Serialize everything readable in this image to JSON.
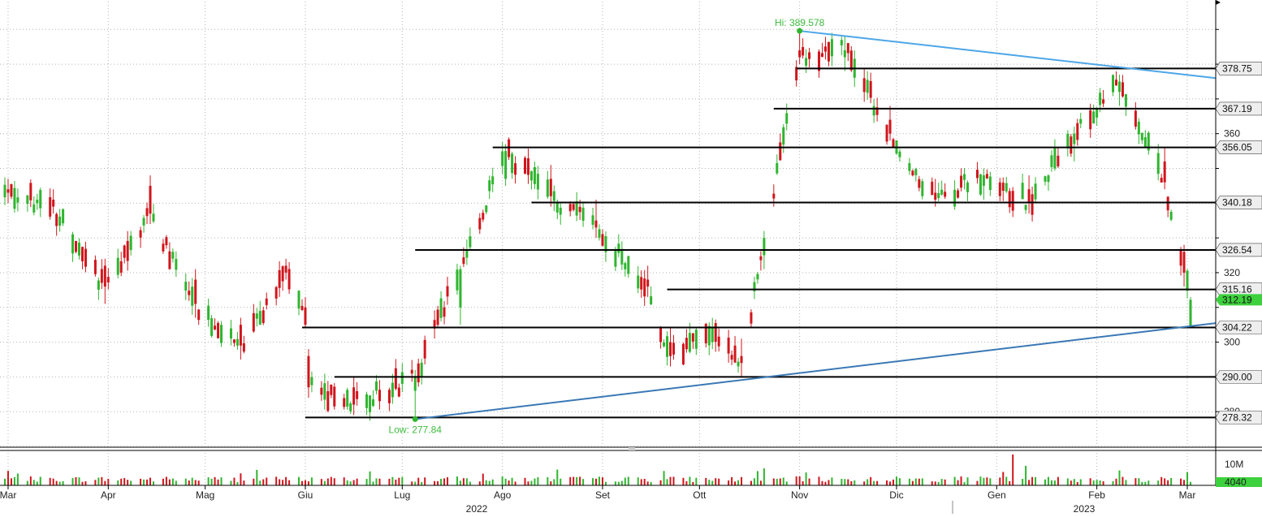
{
  "chart_data": {
    "type": "candlestick",
    "title": "",
    "date_range": [
      "2022-02-28",
      "2023-03-02"
    ],
    "x_tick_labels": [
      "Mar",
      "Apr",
      "Mag",
      "Giu",
      "Lug",
      "Ago",
      "Set",
      "Ott",
      "Nov",
      "Dic",
      "Gen",
      "Feb",
      "Mar"
    ],
    "year_labels": [
      "2022",
      "2023"
    ],
    "y_tick_labels": [
      "300",
      "320",
      "360",
      "280"
    ],
    "ylim": [
      270,
      398
    ],
    "price_levels": [
      "378.75",
      "367.19",
      "356.05",
      "340.18",
      "326.54",
      "315.16",
      "304.22",
      "290.00",
      "278.32"
    ],
    "last_price": "312.19",
    "annotations": {
      "high": "Hi: 389.578",
      "low": "Low: 277.84"
    },
    "volume_ticks": [
      "10M"
    ],
    "volume_last": "4040",
    "grid": true,
    "colors": {
      "up": "#2fb52f",
      "down": "#d0151c",
      "trend_upper": "#4da6e8",
      "trend_lower": "#3a78b5",
      "level_line": "#000000",
      "grid": "#b4b4b4",
      "label_bg": "#eeeeee",
      "last_bg": "#3dd13d"
    },
    "levels": [
      {
        "value": 378.75,
        "from": "2022-10-31"
      },
      {
        "value": 367.19,
        "from": "2022-10-24"
      },
      {
        "value": 356.05,
        "from": "2022-07-29"
      },
      {
        "value": 340.18,
        "from": "2022-08-10"
      },
      {
        "value": 326.54,
        "from": "2022-07-05"
      },
      {
        "value": 315.16,
        "from": "2022-09-21"
      },
      {
        "value": 304.22,
        "from": "2022-05-31"
      },
      {
        "value": 290.0,
        "from": "2022-06-10"
      },
      {
        "value": 278.32,
        "from": "2022-06-01"
      }
    ],
    "trendlines": [
      {
        "name": "upper",
        "from": [
          "2022-11-01",
          389.578
        ],
        "to": [
          "2023-03-02",
          376.8
        ]
      },
      {
        "name": "lower",
        "from": [
          "2022-07-05",
          277.84
        ],
        "to": [
          "2023-03-02",
          304.6
        ]
      }
    ],
    "high_marker": [
      "2022-11-01",
      389.578
    ],
    "low_marker": [
      "2022-07-05",
      277.84
    ],
    "ohlc_daily_sample": [
      [
        "2022-03-01",
        344,
        347,
        340,
        343
      ],
      [
        "2022-03-15",
        341,
        344,
        337,
        339
      ],
      [
        "2022-03-31",
        322,
        324,
        311,
        316
      ],
      [
        "2022-04-14",
        345,
        348,
        334,
        337
      ],
      [
        "2022-04-28",
        318,
        321,
        307,
        311
      ],
      [
        "2022-05-12",
        305,
        307,
        295,
        299
      ],
      [
        "2022-05-26",
        322,
        324,
        318,
        320
      ],
      [
        "2022-06-01",
        310,
        313,
        304,
        305
      ],
      [
        "2022-06-02",
        296,
        298,
        284,
        287
      ],
      [
        "2022-06-16",
        287,
        290,
        279,
        282
      ],
      [
        "2022-07-05",
        286,
        292,
        277.84,
        290
      ],
      [
        "2022-07-19",
        310,
        322,
        305,
        321
      ],
      [
        "2022-08-02",
        347,
        357,
        345,
        355
      ],
      [
        "2022-08-16",
        347,
        351,
        339,
        342
      ],
      [
        "2022-08-30",
        335,
        341,
        330,
        333
      ],
      [
        "2022-09-15",
        318,
        322,
        313,
        316
      ],
      [
        "2022-09-22",
        300,
        304,
        293,
        296
      ],
      [
        "2022-10-05",
        300,
        307,
        298,
        304
      ],
      [
        "2022-10-14",
        296,
        301,
        290,
        294
      ],
      [
        "2022-10-21",
        325,
        332,
        321,
        330
      ],
      [
        "2022-11-01",
        384,
        389.578,
        380,
        382
      ],
      [
        "2022-11-15",
        382,
        388,
        378,
        384
      ],
      [
        "2022-11-29",
        364,
        368,
        358,
        360
      ],
      [
        "2022-12-13",
        343,
        347,
        339,
        341
      ],
      [
        "2022-12-28",
        345,
        350,
        341,
        348
      ],
      [
        "2023-01-11",
        344,
        348,
        337,
        340
      ],
      [
        "2023-01-25",
        357,
        362,
        352,
        360
      ],
      [
        "2023-02-08",
        372,
        377,
        368,
        375
      ],
      [
        "2023-02-22",
        352,
        356,
        344,
        346
      ],
      [
        "2023-02-28",
        326,
        328,
        316,
        320
      ],
      [
        "2023-03-02",
        304.5,
        313,
        304.2,
        312.19
      ]
    ]
  }
}
